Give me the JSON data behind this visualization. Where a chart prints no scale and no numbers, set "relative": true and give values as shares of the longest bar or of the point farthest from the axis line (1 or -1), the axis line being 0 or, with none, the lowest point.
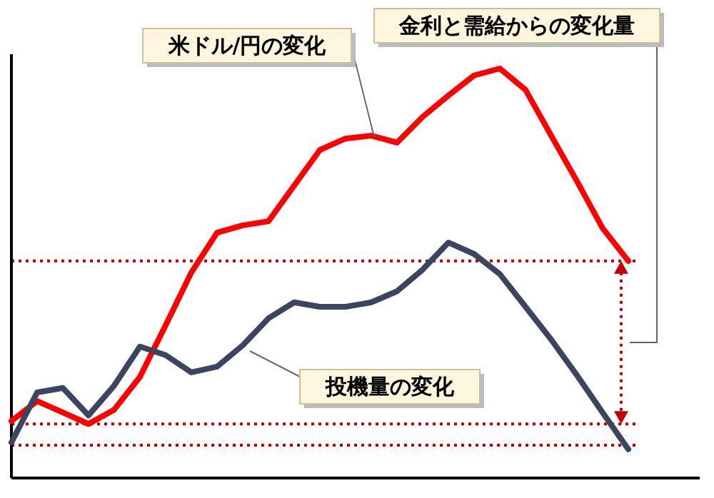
{
  "chart_data": {
    "type": "line",
    "relative": true,
    "categories": [
      null,
      null,
      null,
      null,
      null,
      null,
      null,
      null,
      null,
      null,
      null,
      null,
      null,
      null,
      null,
      null,
      null,
      null,
      null,
      null,
      null,
      null,
      null,
      null,
      null
    ],
    "series": [
      {
        "color": "#ff0000",
        "values": [
          0.139,
          0.188,
          0.16,
          0.132,
          0.167,
          0.247,
          0.373,
          0.502,
          0.599,
          0.617,
          0.627,
          0.714,
          0.801,
          0.829,
          0.836,
          0.819,
          0.882,
          0.934,
          0.983,
          1.0,
          0.948,
          0.836,
          0.725,
          0.61,
          0.53
        ]
      },
      {
        "color": "#3b4560",
        "values": [
          0.087,
          0.209,
          0.22,
          0.153,
          0.226,
          0.321,
          0.3,
          0.258,
          0.272,
          0.324,
          0.39,
          0.429,
          0.418,
          0.418,
          0.429,
          0.456,
          0.509,
          0.575,
          0.547,
          0.498,
          0.418,
          0.338,
          0.251,
          0.16,
          0.07
        ]
      }
    ],
    "ref_lines": [
      {
        "axis": "y",
        "value": 0.53,
        "color": "#c00000",
        "line_style": "dotted"
      },
      {
        "axis": "y",
        "value": 0.132,
        "color": "#c00000",
        "line_style": "dotted"
      },
      {
        "axis": "y",
        "value": 0.08,
        "color": "#c00000",
        "line_style": "dotted"
      }
    ],
    "annotations": [
      "米ドル/円の変化",
      "金利と需給からの変化量",
      "投機量の変化"
    ]
  }
}
